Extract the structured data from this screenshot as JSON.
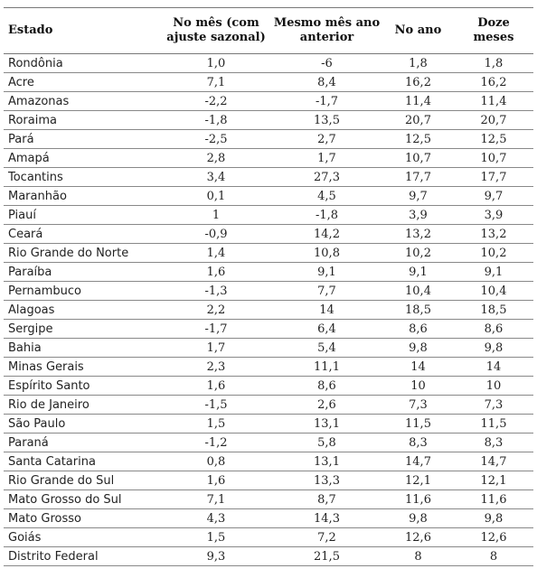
{
  "table": {
    "headers": [
      "Estado",
      "No mês (com ajuste sazonal)",
      "Mesmo mês ano anterior",
      "No ano",
      "Doze meses"
    ],
    "rows": [
      [
        "Rondônia",
        "1,0",
        "-6",
        "1,8",
        "1,8"
      ],
      [
        "Acre",
        "7,1",
        "8,4",
        "16,2",
        "16,2"
      ],
      [
        "Amazonas",
        "-2,2",
        "-1,7",
        "11,4",
        "11,4"
      ],
      [
        "Roraima",
        "-1,8",
        "13,5",
        "20,7",
        "20,7"
      ],
      [
        "Pará",
        "-2,5",
        "2,7",
        "12,5",
        "12,5"
      ],
      [
        "Amapá",
        "2,8",
        "1,7",
        "10,7",
        "10,7"
      ],
      [
        "Tocantins",
        "3,4",
        "27,3",
        "17,7",
        "17,7"
      ],
      [
        "Maranhão",
        "0,1",
        "4,5",
        "9,7",
        "9,7"
      ],
      [
        "Piauí",
        "1",
        "-1,8",
        "3,9",
        "3,9"
      ],
      [
        "Ceará",
        "-0,9",
        "14,2",
        "13,2",
        "13,2"
      ],
      [
        "Rio Grande do Norte",
        "1,4",
        "10,8",
        "10,2",
        "10,2"
      ],
      [
        "Paraíba",
        "1,6",
        "9,1",
        "9,1",
        "9,1"
      ],
      [
        "Pernambuco",
        "-1,3",
        "7,7",
        "10,4",
        "10,4"
      ],
      [
        "Alagoas",
        "2,2",
        "14",
        "18,5",
        "18,5"
      ],
      [
        "Sergipe",
        "-1,7",
        "6,4",
        "8,6",
        "8,6"
      ],
      [
        "Bahia",
        "1,7",
        "5,4",
        "9,8",
        "9,8"
      ],
      [
        "Minas Gerais",
        "2,3",
        "11,1",
        "14",
        "14"
      ],
      [
        "Espírito Santo",
        "1,6",
        "8,6",
        "10",
        "10"
      ],
      [
        "Rio de Janeiro",
        "-1,5",
        "2,6",
        "7,3",
        "7,3"
      ],
      [
        "São Paulo",
        "1,5",
        "13,1",
        "11,5",
        "11,5"
      ],
      [
        "Paraná",
        "-1,2",
        "5,8",
        "8,3",
        "8,3"
      ],
      [
        "Santa Catarina",
        "0,8",
        "13,1",
        "14,7",
        "14,7"
      ],
      [
        "Rio Grande do Sul",
        "1,6",
        "13,3",
        "12,1",
        "12,1"
      ],
      [
        "Mato Grosso do Sul",
        "7,1",
        "8,7",
        "11,6",
        "11,6"
      ],
      [
        "Mato Grosso",
        "4,3",
        "14,3",
        "9,8",
        "9,8"
      ],
      [
        "Goiás",
        "1,5",
        "7,2",
        "12,6",
        "12,6"
      ],
      [
        "Distrito Federal",
        "9,3",
        "21,5",
        "8",
        "8"
      ]
    ]
  }
}
